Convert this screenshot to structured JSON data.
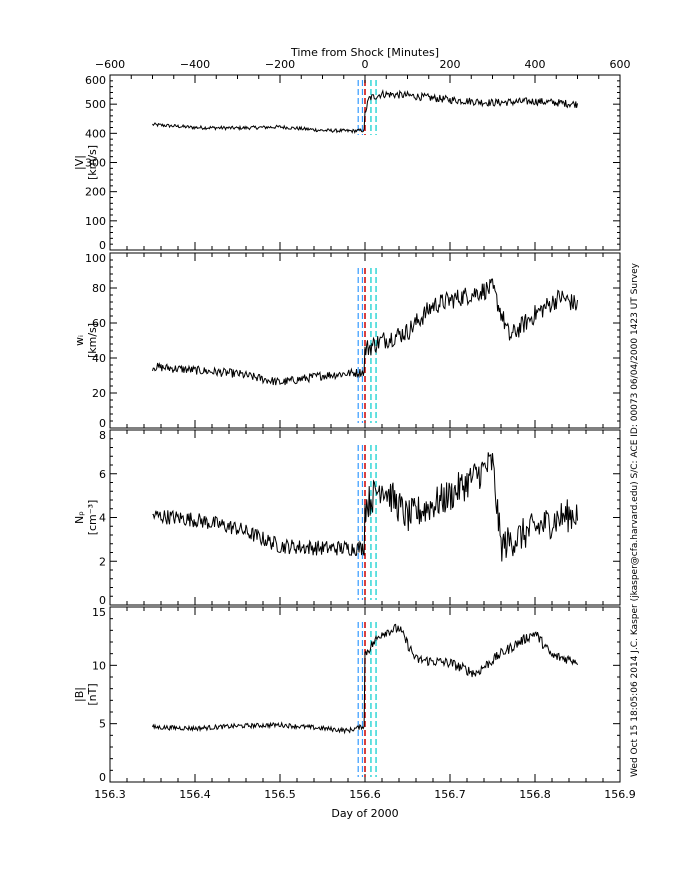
{
  "top_axis": {
    "title": "Time from Shock [Minutes]",
    "range": [
      -600,
      600
    ],
    "ticks": [
      -600,
      -400,
      -200,
      0,
      200,
      400,
      600
    ],
    "tick_labels": [
      "−600",
      "−400",
      "−200",
      "0",
      "200",
      "400",
      "600"
    ]
  },
  "bottom_axis": {
    "title": "Day of 2000",
    "range": [
      156.3,
      156.9
    ],
    "ticks": [
      156.3,
      156.4,
      156.5,
      156.6,
      156.7,
      156.8,
      156.9
    ],
    "tick_labels": [
      "156.3",
      "156.4",
      "156.5",
      "156.6",
      "156.7",
      "156.8",
      "156.9"
    ]
  },
  "side_label": "Wed Oct 15 18:05:06 2014   J.C. Kasper (jkasper@cfa.harvard.edu)   S/C: ACE ID: 00073 06/04/2000   1423 UT Survey",
  "colors": {
    "data": "#000000",
    "shock": "#cc0000",
    "upstream": "#3399ff",
    "downstream": "#00cccc"
  },
  "chart_data": [
    {
      "type": "line",
      "panel": "velocity",
      "ylabel": "|V|",
      "unit": "[km/s]",
      "ylim": [
        0,
        600
      ],
      "yticks": [
        0,
        100,
        200,
        300,
        400,
        500,
        600
      ],
      "x_start": 156.35,
      "x_end": 156.85,
      "x": [
        156.35,
        156.4,
        156.45,
        156.5,
        156.55,
        156.585,
        156.599,
        156.6,
        156.605,
        156.62,
        156.65,
        156.7,
        156.75,
        156.8,
        156.85
      ],
      "y": [
        430,
        420,
        418,
        422,
        410,
        408,
        410,
        470,
        520,
        535,
        530,
        515,
        505,
        510,
        500
      ],
      "noise": 6,
      "vlines": {
        "shock": [
          156.6
        ],
        "upstream": [
          156.592,
          156.597
        ],
        "downstream": [
          156.607,
          156.613
        ]
      }
    },
    {
      "type": "line",
      "panel": "thermal speed",
      "ylabel": "wᵢ",
      "unit": "[km/s]",
      "ylim": [
        0,
        100
      ],
      "yticks": [
        0,
        20,
        40,
        60,
        80,
        100
      ],
      "x_start": 156.35,
      "x_end": 156.85,
      "x": [
        156.35,
        156.4,
        156.45,
        156.5,
        156.55,
        156.599,
        156.6,
        156.62,
        156.65,
        156.68,
        156.7,
        156.75,
        156.77,
        156.8,
        156.83,
        156.85
      ],
      "y": [
        35,
        33,
        31,
        26,
        30,
        32,
        45,
        50,
        55,
        70,
        73,
        80,
        52,
        65,
        75,
        70
      ],
      "noise": 2.5,
      "vlines": {
        "shock": [
          156.6
        ],
        "upstream": [
          156.592,
          156.597
        ],
        "downstream": [
          156.607,
          156.613
        ]
      }
    },
    {
      "type": "line",
      "panel": "proton density",
      "ylabel": "Nₚ",
      "unit": "[cm⁻³]",
      "ylim": [
        0,
        8
      ],
      "yticks": [
        0,
        2,
        4,
        6,
        8
      ],
      "x_start": 156.35,
      "x_end": 156.85,
      "x": [
        156.35,
        156.4,
        156.45,
        156.5,
        156.55,
        156.599,
        156.6,
        156.62,
        156.65,
        156.7,
        156.75,
        156.76,
        156.8,
        156.83,
        156.85
      ],
      "y": [
        4.1,
        3.9,
        3.5,
        2.7,
        2.6,
        2.6,
        4.5,
        5.5,
        4.0,
        5.0,
        6.5,
        2.7,
        3.5,
        4.0,
        4.2
      ],
      "noise": 0.35,
      "vlines": {
        "shock": [
          156.6
        ],
        "upstream": [
          156.592,
          156.597
        ],
        "downstream": [
          156.607,
          156.613
        ]
      }
    },
    {
      "type": "line",
      "panel": "magnetic field",
      "ylabel": "|B|",
      "unit": "[nT]",
      "ylim": [
        0,
        15
      ],
      "yticks": [
        0,
        5,
        10,
        15
      ],
      "x_start": 156.35,
      "x_end": 156.85,
      "x": [
        156.35,
        156.4,
        156.45,
        156.5,
        156.55,
        156.58,
        156.599,
        156.6,
        156.62,
        156.64,
        156.66,
        156.7,
        156.73,
        156.76,
        156.8,
        156.82,
        156.85
      ],
      "y": [
        4.7,
        4.6,
        4.8,
        4.9,
        4.6,
        4.4,
        4.8,
        11.0,
        12.8,
        13.2,
        10.5,
        10.2,
        9.3,
        11.0,
        12.8,
        10.8,
        10.4
      ],
      "noise": 0.2,
      "vlines": {
        "shock": [
          156.6
        ],
        "upstream": [
          156.592,
          156.597
        ],
        "downstream": [
          156.607,
          156.613
        ]
      }
    }
  ]
}
